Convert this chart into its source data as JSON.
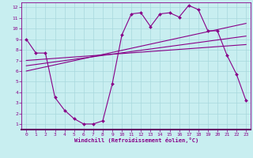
{
  "xlabel": "Windchill (Refroidissement éolien,°C)",
  "background_color": "#c8eef0",
  "grid_color": "#a8d8dc",
  "line_color": "#880088",
  "xlim": [
    -0.5,
    23.5
  ],
  "ylim": [
    0.5,
    12.5
  ],
  "xticks": [
    0,
    1,
    2,
    3,
    4,
    5,
    6,
    7,
    8,
    9,
    10,
    11,
    12,
    13,
    14,
    15,
    16,
    17,
    18,
    19,
    20,
    21,
    22,
    23
  ],
  "yticks": [
    1,
    2,
    3,
    4,
    5,
    6,
    7,
    8,
    9,
    10,
    11,
    12
  ],
  "curve1_x": [
    0,
    1,
    2,
    3,
    4,
    5,
    6,
    7,
    8,
    9,
    10,
    11,
    12,
    13,
    14,
    15,
    16,
    17,
    18,
    19,
    20,
    21,
    22,
    23
  ],
  "curve1_y": [
    9.0,
    7.7,
    7.7,
    3.5,
    2.3,
    1.5,
    1.0,
    1.0,
    1.3,
    4.8,
    9.4,
    11.4,
    11.5,
    10.2,
    11.4,
    11.5,
    11.1,
    12.2,
    11.8,
    9.8,
    9.8,
    7.5,
    5.7,
    3.2
  ],
  "line1_x": [
    0,
    23
  ],
  "line1_y": [
    6.0,
    10.5
  ],
  "line2_x": [
    0,
    23
  ],
  "line2_y": [
    6.5,
    9.3
  ],
  "line3_x": [
    0,
    23
  ],
  "line3_y": [
    7.0,
    8.5
  ]
}
